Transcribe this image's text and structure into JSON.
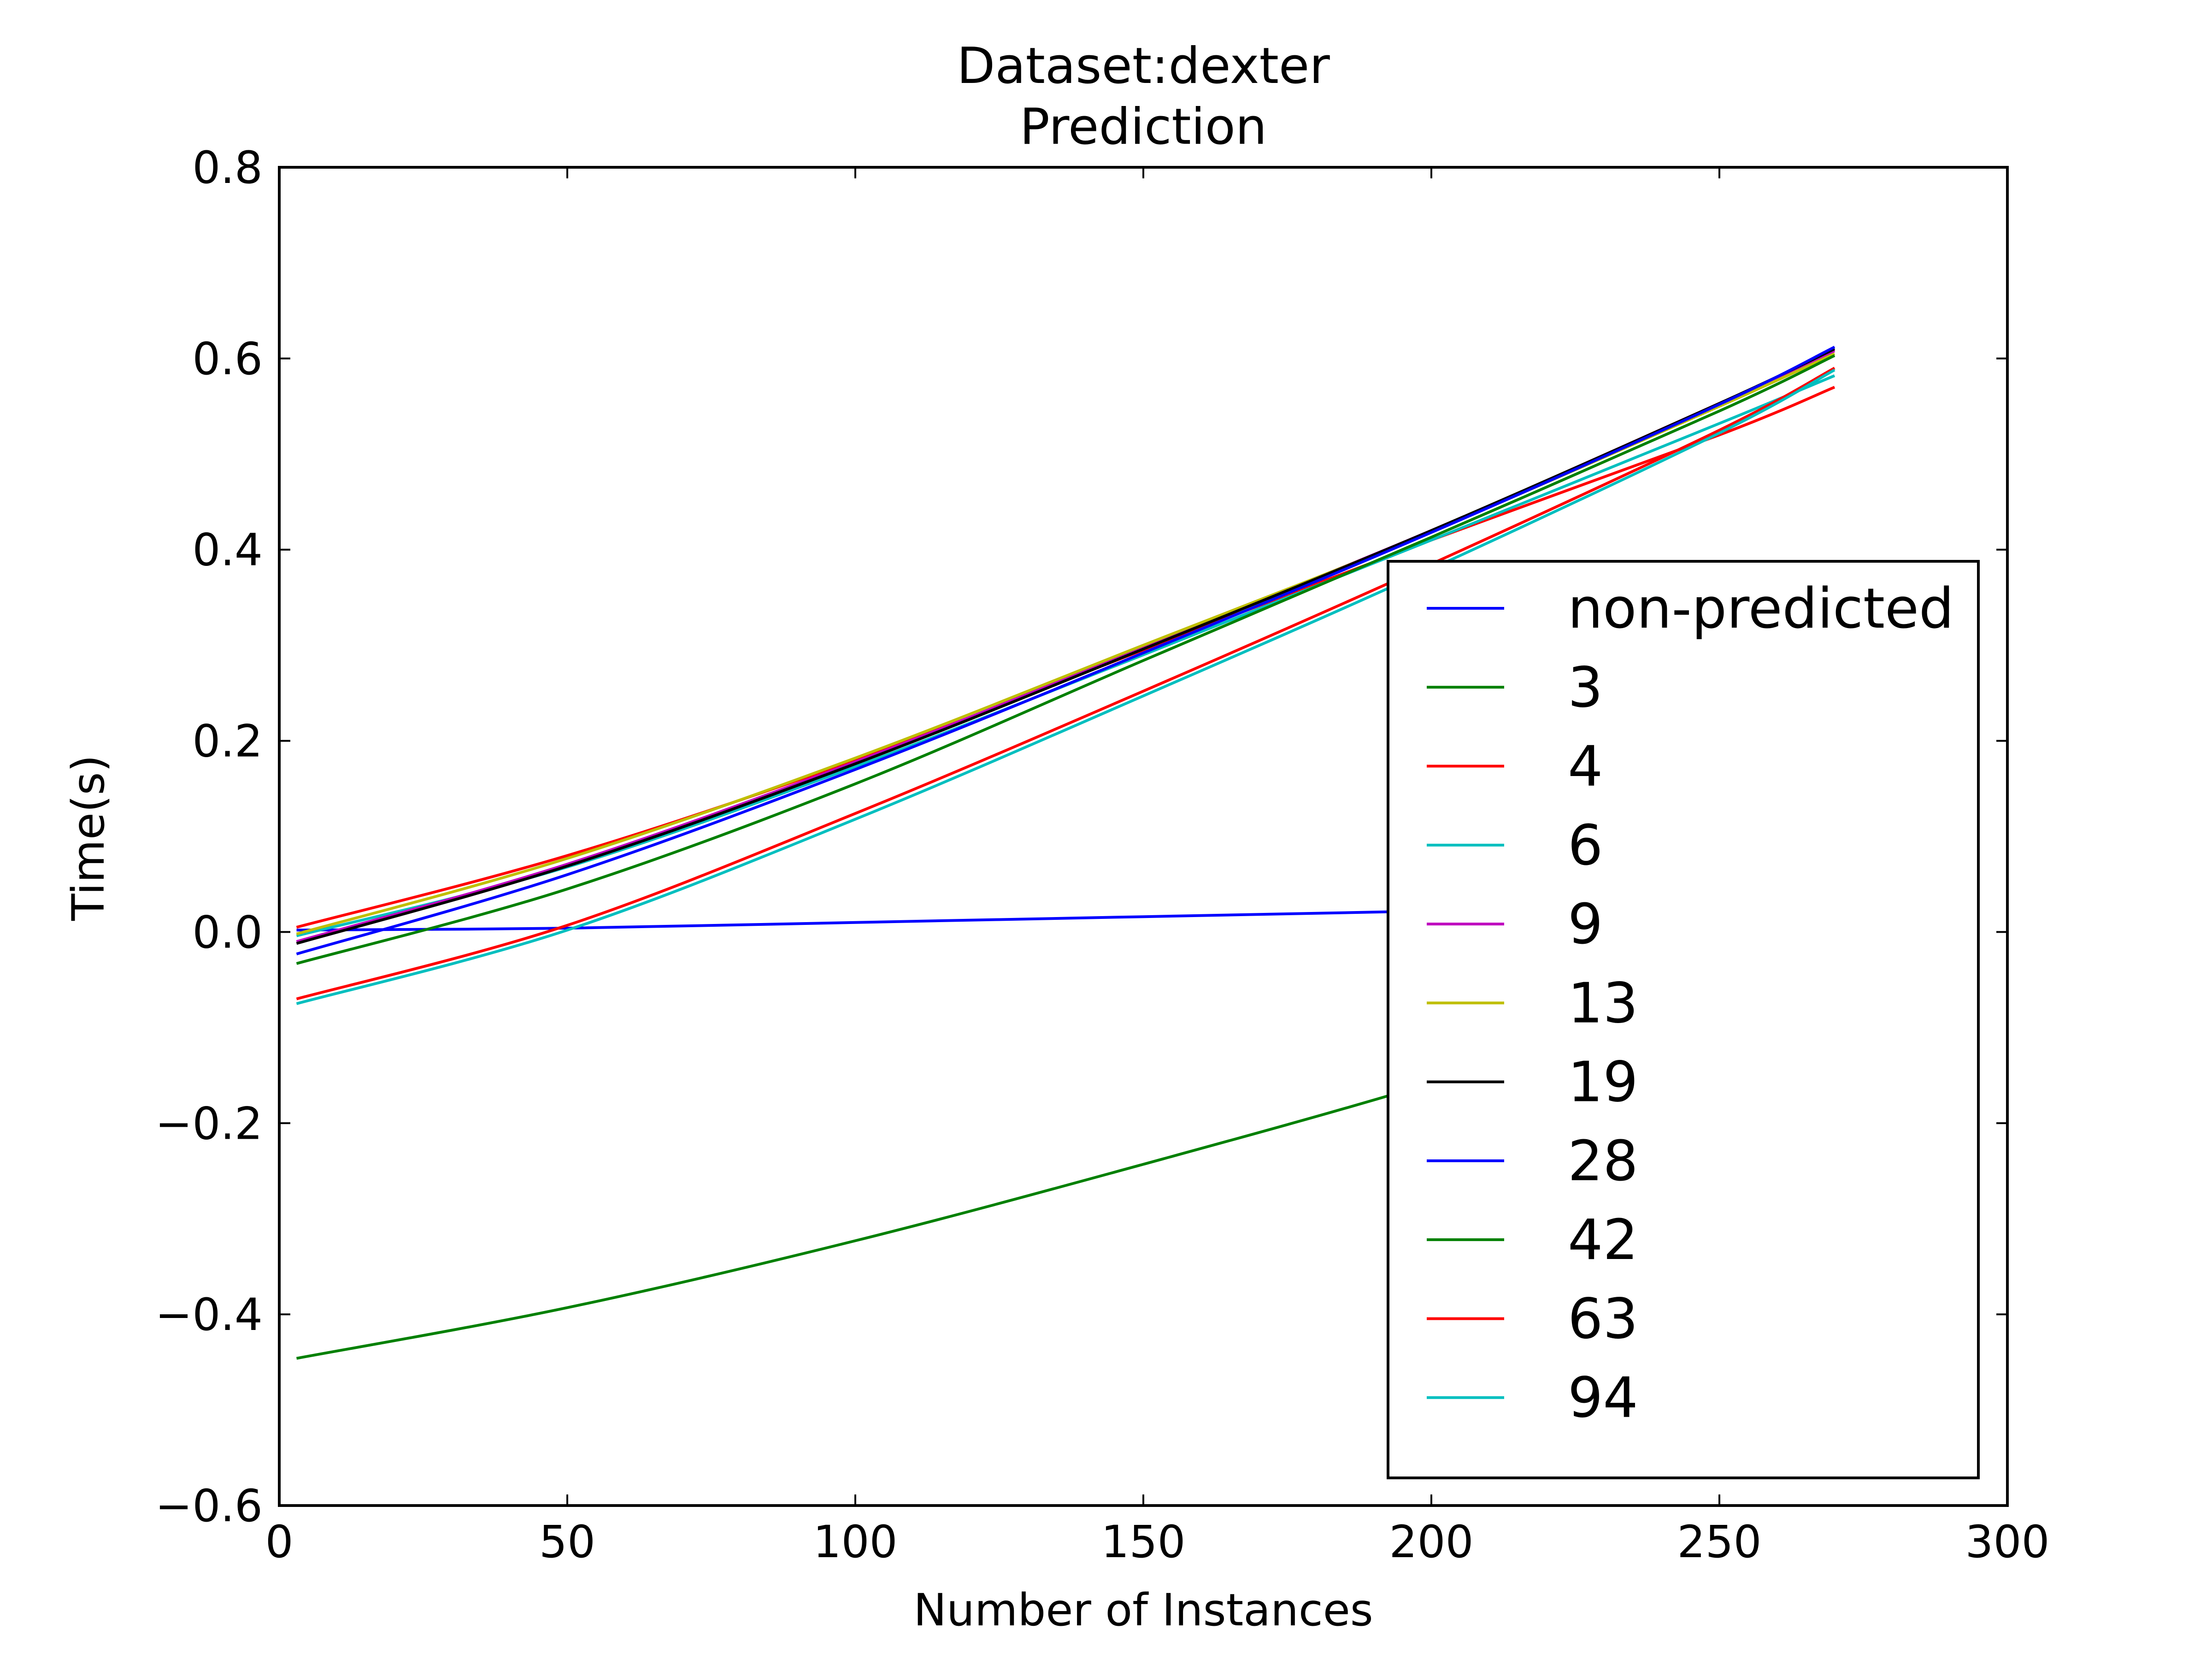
{
  "chart_data": {
    "type": "line",
    "title": "Dataset:dexter",
    "subtitle": "Prediction",
    "xlabel": "Number of Instances",
    "ylabel": "Time(s)",
    "xlim": [
      0,
      300
    ],
    "ylim": [
      -0.6,
      0.8
    ],
    "xticks": [
      0,
      50,
      100,
      150,
      200,
      250,
      300
    ],
    "xtick_labels": [
      "0",
      "50",
      "100",
      "150",
      "200",
      "250",
      "300"
    ],
    "yticks": [
      -0.6,
      -0.4,
      -0.2,
      0.0,
      0.2,
      0.4,
      0.6,
      0.8
    ],
    "ytick_labels": [
      "−0.6",
      "−0.4",
      "−0.2",
      "0.0",
      "0.2",
      "0.4",
      "0.6",
      "0.8"
    ],
    "grid": false,
    "legend_position": "lower-right",
    "x": [
      3,
      50,
      100,
      150,
      200,
      250,
      270
    ],
    "series": [
      {
        "name": "non-predicted",
        "color": "#0000ff",
        "values": [
          0.002,
          0.004,
          0.01,
          0.016,
          0.022,
          0.028,
          0.03
        ]
      },
      {
        "name": "3",
        "color": "#008000",
        "values": [
          -0.446,
          -0.393,
          -0.323,
          -0.243,
          -0.158,
          -0.062,
          -0.02
        ]
      },
      {
        "name": "4",
        "color": "#ff0000",
        "values": [
          0.005,
          0.08,
          0.18,
          0.295,
          0.41,
          0.52,
          0.57
        ]
      },
      {
        "name": "6",
        "color": "#00bfbf",
        "values": [
          -0.004,
          0.068,
          0.173,
          0.29,
          0.41,
          0.532,
          0.582
        ]
      },
      {
        "name": "9",
        "color": "#bf00bf",
        "values": [
          -0.01,
          0.071,
          0.178,
          0.298,
          0.42,
          0.553,
          0.608
        ]
      },
      {
        "name": "13",
        "color": "#bfbf00",
        "values": [
          -0.002,
          0.077,
          0.182,
          0.3,
          0.419,
          0.55,
          0.605
        ]
      },
      {
        "name": "19",
        "color": "#000000",
        "values": [
          -0.012,
          0.069,
          0.176,
          0.296,
          0.42,
          0.553,
          0.61
        ]
      },
      {
        "name": "28",
        "color": "#0000ff",
        "values": [
          -0.023,
          0.06,
          0.17,
          0.292,
          0.418,
          0.552,
          0.612
        ]
      },
      {
        "name": "42",
        "color": "#008000",
        "values": [
          -0.033,
          0.045,
          0.155,
          0.284,
          0.413,
          0.545,
          0.603
        ]
      },
      {
        "name": "63",
        "color": "#ff0000",
        "values": [
          -0.07,
          0.007,
          0.124,
          0.252,
          0.385,
          0.525,
          0.59
        ]
      },
      {
        "name": "94",
        "color": "#00bfbf",
        "values": [
          -0.075,
          0.002,
          0.118,
          0.247,
          0.38,
          0.522,
          0.588
        ]
      }
    ]
  }
}
